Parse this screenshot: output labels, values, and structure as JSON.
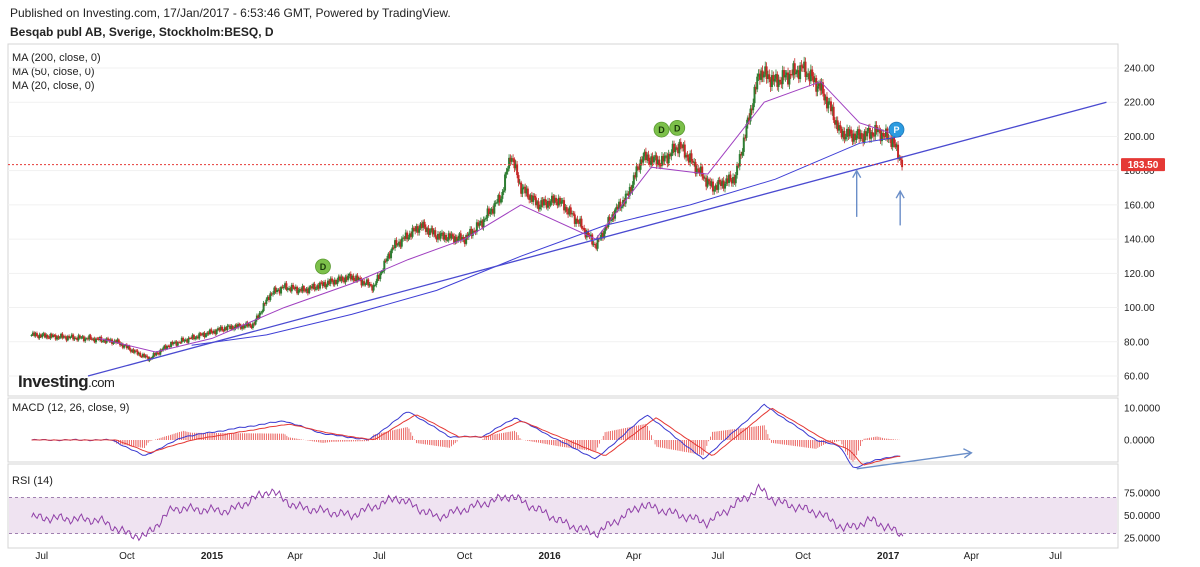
{
  "header": {
    "published": "Published on Investing.com, 17/Jan/2017 - 6:53:46 GMT, Powered by TradingView.",
    "symbol": "Besqab publ AB, Sverige, Stockholm:BESQ, D"
  },
  "indicators": {
    "ma200": "MA (200, close, 0)",
    "ma50": "MA (50, close, 0)",
    "ma20": "MA (20, close, 0)",
    "macd": "MACD (12, 26, close, 9)",
    "rsi": "RSI (14)"
  },
  "logo": {
    "name": "Investing",
    "suffix": ".com"
  },
  "colors": {
    "up": "#2e7d32",
    "down": "#c62828",
    "ma_long": "#3f3fd6",
    "ma_short": "#a040c0",
    "trendline": "#4a4ad0",
    "arrow": "#6a8ec8",
    "price_line": "#e53935",
    "macd_line": "#3a3ad0",
    "signal_line": "#e53935",
    "rsi_line": "#9040a8",
    "rsi_band": "#efe3f1"
  },
  "chart_data": [
    {
      "type": "candlestick",
      "title": "Besqab publ AB, Sverige, Stockholm:BESQ, D",
      "ylim": [
        50,
        250
      ],
      "price_ticks": [
        "240.00",
        "220.00",
        "200.00",
        "180.00",
        "160.00",
        "140.00",
        "120.00",
        "100.00",
        "80.00",
        "60.00"
      ],
      "current_price": "183.50",
      "x_labels": [
        "Jul",
        "Oct",
        "2015",
        "Apr",
        "Jul",
        "Oct",
        "2016",
        "Apr",
        "Jul",
        "Oct",
        "2017",
        "Apr",
        "Jul"
      ],
      "x_labels_bold": [
        "2015",
        "2016",
        "2017"
      ],
      "price_path": [
        [
          "2014-06-20",
          84
        ],
        [
          "2014-07-15",
          83
        ],
        [
          "2014-08-20",
          82
        ],
        [
          "2014-09-20",
          80
        ],
        [
          "2014-10-10",
          74
        ],
        [
          "2014-10-25",
          70
        ],
        [
          "2014-11-15",
          78
        ],
        [
          "2014-12-15",
          83
        ],
        [
          "2015-01-15",
          88
        ],
        [
          "2015-02-15",
          90
        ],
        [
          "2015-03-05",
          108
        ],
        [
          "2015-03-20",
          112
        ],
        [
          "2015-04-10",
          110
        ],
        [
          "2015-05-10",
          115
        ],
        [
          "2015-06-01",
          118
        ],
        [
          "2015-06-25",
          112
        ],
        [
          "2015-07-15",
          135
        ],
        [
          "2015-08-15",
          148
        ],
        [
          "2015-09-01",
          142
        ],
        [
          "2015-10-01",
          140
        ],
        [
          "2015-10-20",
          150
        ],
        [
          "2015-11-10",
          165
        ],
        [
          "2015-11-20",
          190
        ],
        [
          "2015-12-01",
          170
        ],
        [
          "2015-12-20",
          160
        ],
        [
          "2016-01-10",
          163
        ],
        [
          "2016-02-01",
          150
        ],
        [
          "2016-02-20",
          136
        ],
        [
          "2016-03-10",
          155
        ],
        [
          "2016-03-25",
          165
        ],
        [
          "2016-04-10",
          188
        ],
        [
          "2016-05-01",
          185
        ],
        [
          "2016-05-20",
          195
        ],
        [
          "2016-06-10",
          180
        ],
        [
          "2016-06-25",
          170
        ],
        [
          "2016-07-20",
          176
        ],
        [
          "2016-08-01",
          205
        ],
        [
          "2016-08-15",
          238
        ],
        [
          "2016-09-01",
          232
        ],
        [
          "2016-10-01",
          240
        ],
        [
          "2016-10-20",
          228
        ],
        [
          "2016-11-01",
          215
        ],
        [
          "2016-11-10",
          202
        ],
        [
          "2016-12-01",
          200
        ],
        [
          "2016-12-20",
          203
        ],
        [
          "2017-01-05",
          198
        ],
        [
          "2017-01-17",
          183.5
        ]
      ],
      "moving_averages": [
        {
          "name": "MA (200, close, 0)",
          "points": [
            [
              "2014-12-10",
              78
            ],
            [
              "2015-03-01",
              84
            ],
            [
              "2015-06-01",
              96
            ],
            [
              "2015-09-01",
              110
            ],
            [
              "2015-12-01",
              130
            ],
            [
              "2016-03-01",
              148
            ],
            [
              "2016-06-01",
              160
            ],
            [
              "2016-09-01",
              175
            ],
            [
              "2016-12-01",
              196
            ],
            [
              "2017-01-15",
              200
            ]
          ]
        },
        {
          "name": "MA (20, close, 0)",
          "points": [
            [
              "2014-09-01",
              82
            ],
            [
              "2014-11-01",
              74
            ],
            [
              "2015-01-01",
              82
            ],
            [
              "2015-03-20",
              100
            ],
            [
              "2015-06-01",
              114
            ],
            [
              "2015-08-01",
              128
            ],
            [
              "2015-10-01",
              140
            ],
            [
              "2015-12-01",
              160
            ],
            [
              "2016-02-20",
              140
            ],
            [
              "2016-04-20",
              182
            ],
            [
              "2016-06-20",
              178
            ],
            [
              "2016-08-20",
              220
            ],
            [
              "2016-10-20",
              232
            ],
            [
              "2016-12-01",
              208
            ],
            [
              "2017-01-15",
              200
            ]
          ]
        }
      ],
      "trendline": [
        [
          "2014-08-20",
          60
        ],
        [
          "2017-08-25",
          220
        ]
      ],
      "markers": [
        {
          "label": "D",
          "date": "2015-05-01",
          "price": 124
        },
        {
          "label": "D",
          "date": "2016-05-01",
          "price": 204
        },
        {
          "label": "D",
          "date": "2016-05-18",
          "price": 205
        },
        {
          "label": "P",
          "date": "2017-01-10",
          "price": 204
        }
      ],
      "annotations": [
        {
          "type": "arrow-up",
          "date": "2016-11-28",
          "from": 153,
          "to": 180
        },
        {
          "type": "arrow-up",
          "date": "2017-01-14",
          "from": 148,
          "to": 168
        }
      ]
    },
    {
      "type": "line",
      "title": "MACD (12, 26, close, 9)",
      "ylim": [
        -22,
        20
      ],
      "y_ticks": [
        "10.0000",
        "0.0000"
      ],
      "macd_path": [
        [
          "2014-06-20",
          0
        ],
        [
          "2014-09-15",
          0
        ],
        [
          "2014-10-20",
          -5
        ],
        [
          "2014-12-01",
          1
        ],
        [
          "2015-03-20",
          6
        ],
        [
          "2015-05-01",
          2
        ],
        [
          "2015-06-20",
          0
        ],
        [
          "2015-08-01",
          9
        ],
        [
          "2015-09-15",
          1
        ],
        [
          "2015-10-20",
          1
        ],
        [
          "2015-11-25",
          7
        ],
        [
          "2016-01-10",
          0
        ],
        [
          "2016-02-20",
          -6
        ],
        [
          "2016-04-15",
          8
        ],
        [
          "2016-06-15",
          -6
        ],
        [
          "2016-08-20",
          11
        ],
        [
          "2016-10-15",
          0
        ],
        [
          "2016-11-10",
          -2
        ],
        [
          "2016-11-25",
          -9
        ],
        [
          "2016-12-20",
          -6
        ],
        [
          "2017-01-15",
          -5
        ]
      ],
      "signal_path": [
        [
          "2014-06-20",
          0
        ],
        [
          "2014-09-20",
          0
        ],
        [
          "2014-10-25",
          -4
        ],
        [
          "2014-12-10",
          0
        ],
        [
          "2015-03-25",
          5
        ],
        [
          "2015-05-10",
          2
        ],
        [
          "2015-06-25",
          0
        ],
        [
          "2015-08-10",
          8
        ],
        [
          "2015-09-25",
          1
        ],
        [
          "2015-10-25",
          1
        ],
        [
          "2015-12-01",
          6
        ],
        [
          "2016-01-20",
          0
        ],
        [
          "2016-03-01",
          -5
        ],
        [
          "2016-04-25",
          7
        ],
        [
          "2016-06-25",
          -5
        ],
        [
          "2016-08-28",
          10
        ],
        [
          "2016-10-25",
          0
        ],
        [
          "2016-11-20",
          -3
        ],
        [
          "2016-12-05",
          -8
        ],
        [
          "2016-12-28",
          -6
        ],
        [
          "2017-01-15",
          -5
        ]
      ],
      "divergence_arrow": [
        [
          "2016-11-28",
          -9
        ],
        [
          "2017-04-01",
          -4
        ]
      ]
    },
    {
      "type": "line",
      "title": "RSI (14)",
      "ylim": [
        15,
        95
      ],
      "y_ticks": [
        "75.0000",
        "50.0000",
        "25.0000"
      ],
      "band": [
        30,
        70
      ],
      "rsi_path": [
        [
          "2014-06-20",
          48
        ],
        [
          "2014-09-01",
          45
        ],
        [
          "2014-10-01",
          30
        ],
        [
          "2014-10-20",
          26
        ],
        [
          "2014-11-20",
          58
        ],
        [
          "2015-01-20",
          55
        ],
        [
          "2015-03-05",
          78
        ],
        [
          "2015-04-01",
          60
        ],
        [
          "2015-06-01",
          50
        ],
        [
          "2015-07-20",
          70
        ],
        [
          "2015-09-01",
          48
        ],
        [
          "2015-11-20",
          72
        ],
        [
          "2016-01-20",
          40
        ],
        [
          "2016-02-20",
          30
        ],
        [
          "2016-04-10",
          62
        ],
        [
          "2016-06-20",
          42
        ],
        [
          "2016-08-15",
          80
        ],
        [
          "2016-09-01",
          66
        ],
        [
          "2016-10-20",
          52
        ],
        [
          "2016-11-15",
          35
        ],
        [
          "2016-12-15",
          45
        ],
        [
          "2017-01-17",
          28
        ]
      ]
    }
  ]
}
